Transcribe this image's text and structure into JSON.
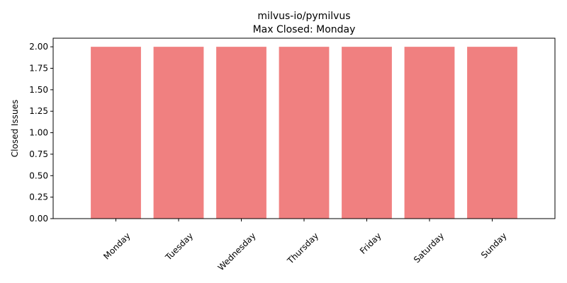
{
  "chart_data": {
    "type": "bar",
    "title": "milvus-io/pymilvus",
    "subtitle": "Max Closed: Monday",
    "xlabel": "",
    "ylabel": "Closed Issues",
    "categories": [
      "Monday",
      "Tuesday",
      "Wednesday",
      "Thursday",
      "Friday",
      "Saturday",
      "Sunday"
    ],
    "values": [
      2,
      2,
      2,
      2,
      2,
      2,
      2
    ],
    "ylim": [
      0,
      2.1
    ],
    "yticks": [
      "0.00",
      "0.25",
      "0.50",
      "0.75",
      "1.00",
      "1.25",
      "1.50",
      "1.75",
      "2.00"
    ],
    "bar_color": "#f08080",
    "grid": false,
    "legend": "none"
  }
}
